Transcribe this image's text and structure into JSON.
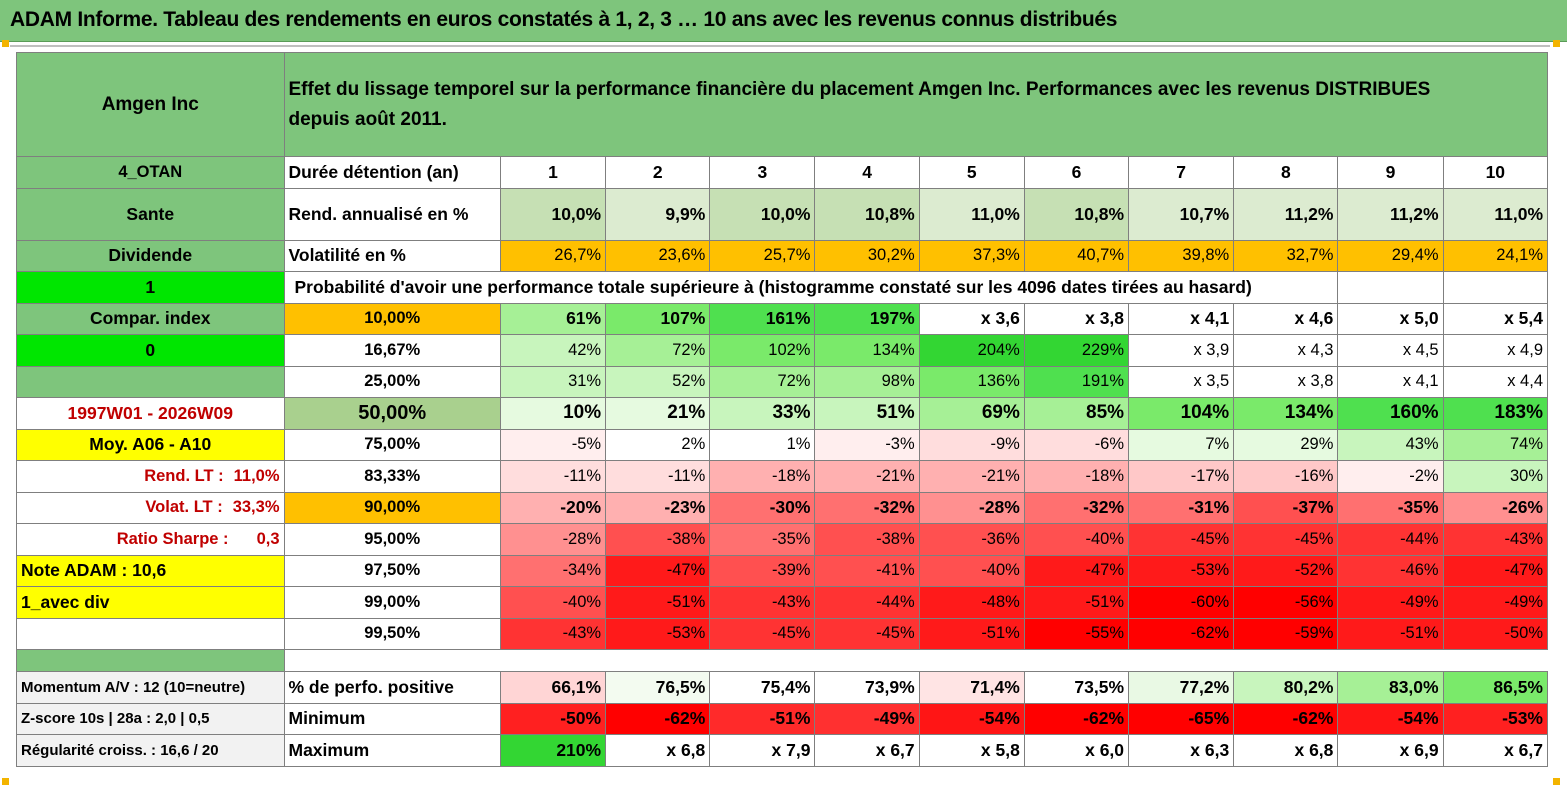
{
  "title": "ADAM Informe. Tableau des rendements en euros constatés à 1, 2, 3 … 10 ans avec les revenus connus distribués",
  "asset": {
    "name": "Amgen Inc",
    "description_line1": "Effet du lissage temporel sur la performance financière du placement Amgen Inc. Performances avec les revenus DISTRIBUES",
    "description_line2": "depuis août 2011."
  },
  "side": {
    "code": "4_OTAN",
    "sector": "Sante",
    "type": "Dividende",
    "flag1": "1",
    "compar": "Compar. index",
    "flag0": "0",
    "period": "1997W01 - 2026W09",
    "moy": "Moy. A06 - A10",
    "rend_label": "Rend. LT :",
    "rend_value": "11,0%",
    "volat_label": "Volat. LT :",
    "volat_value": "33,3%",
    "sharpe_label": "Ratio Sharpe :",
    "sharpe_value": "0,3",
    "note": "Note ADAM : 10,6",
    "avec": "1_avec div",
    "momentum": "Momentum A/V : 12 (10=neutre)",
    "zscore": "Z-score 10s | 28a : 2,0 | 0,5",
    "regularite": "Régularité croiss. : 16,6 / 20"
  },
  "labels": {
    "duree": "Durée détention (an)",
    "rend": "Rend. annualisé en %",
    "volat": "Volatilité en %",
    "proba": "Probabilité d'avoir une performance totale supérieure à (histogramme constaté sur les 4096 dates tirées au hasard)",
    "perfo_pos": "% de perfo. positive",
    "minimum": "Minimum",
    "maximum": "Maximum"
  },
  "years": [
    "1",
    "2",
    "3",
    "4",
    "5",
    "6",
    "7",
    "8",
    "9",
    "10"
  ],
  "rend_values": [
    "10,0%",
    "9,9%",
    "10,0%",
    "10,8%",
    "11,0%",
    "10,8%",
    "10,7%",
    "11,2%",
    "11,2%",
    "11,0%"
  ],
  "volat_values": [
    "26,7%",
    "23,6%",
    "25,7%",
    "30,2%",
    "37,3%",
    "40,7%",
    "39,8%",
    "32,7%",
    "29,4%",
    "24,1%"
  ],
  "prob_rows": [
    {
      "pct": "10,00%",
      "values": [
        "61%",
        "107%",
        "161%",
        "197%",
        "x 3,6",
        "x 3,8",
        "x 4,1",
        "x 4,6",
        "x 5,0",
        "x 5,4"
      ]
    },
    {
      "pct": "16,67%",
      "values": [
        "42%",
        "72%",
        "102%",
        "134%",
        "204%",
        "229%",
        "x 3,9",
        "x 4,3",
        "x 4,5",
        "x 4,9"
      ]
    },
    {
      "pct": "25,00%",
      "values": [
        "31%",
        "52%",
        "72%",
        "98%",
        "136%",
        "191%",
        "x 3,5",
        "x 3,8",
        "x 4,1",
        "x 4,4"
      ]
    },
    {
      "pct": "50,00%",
      "values": [
        "10%",
        "21%",
        "33%",
        "51%",
        "69%",
        "85%",
        "104%",
        "134%",
        "160%",
        "183%"
      ]
    },
    {
      "pct": "75,00%",
      "values": [
        "-5%",
        "2%",
        "1%",
        "-3%",
        "-9%",
        "-6%",
        "7%",
        "29%",
        "43%",
        "74%"
      ]
    },
    {
      "pct": "83,33%",
      "values": [
        "-11%",
        "-11%",
        "-18%",
        "-21%",
        "-21%",
        "-18%",
        "-17%",
        "-16%",
        "-2%",
        "30%"
      ]
    },
    {
      "pct": "90,00%",
      "values": [
        "-20%",
        "-23%",
        "-30%",
        "-32%",
        "-28%",
        "-32%",
        "-31%",
        "-37%",
        "-35%",
        "-26%"
      ]
    },
    {
      "pct": "95,00%",
      "values": [
        "-28%",
        "-38%",
        "-35%",
        "-38%",
        "-36%",
        "-40%",
        "-45%",
        "-45%",
        "-44%",
        "-43%"
      ]
    },
    {
      "pct": "97,50%",
      "values": [
        "-34%",
        "-47%",
        "-39%",
        "-41%",
        "-40%",
        "-47%",
        "-53%",
        "-52%",
        "-46%",
        "-47%"
      ]
    },
    {
      "pct": "99,00%",
      "values": [
        "-40%",
        "-51%",
        "-43%",
        "-44%",
        "-48%",
        "-51%",
        "-60%",
        "-56%",
        "-49%",
        "-49%"
      ]
    },
    {
      "pct": "99,50%",
      "values": [
        "-43%",
        "-53%",
        "-45%",
        "-45%",
        "-51%",
        "-55%",
        "-62%",
        "-59%",
        "-51%",
        "-50%"
      ]
    }
  ],
  "perfo_pos_values": [
    "66,1%",
    "76,5%",
    "75,4%",
    "73,9%",
    "71,4%",
    "73,5%",
    "77,2%",
    "80,2%",
    "83,0%",
    "86,5%"
  ],
  "minimum_values": [
    "-50%",
    "-62%",
    "-51%",
    "-49%",
    "-54%",
    "-62%",
    "-65%",
    "-62%",
    "-54%",
    "-53%"
  ],
  "maximum_values": [
    "210%",
    "x 6,8",
    "x 7,9",
    "x 6,7",
    "x 5,8",
    "x 6,0",
    "x 6,3",
    "x 6,8",
    "x 6,9",
    "x 6,7"
  ],
  "colors": {
    "header_green": "#7ec57c",
    "light_green": "#c6e0b4",
    "orange": "#ffc000",
    "bright_green": "#00e600",
    "yellow": "#ffff00",
    "dark_red_text": "#c00000",
    "red": "#ff0000",
    "white": "#ffffff"
  }
}
